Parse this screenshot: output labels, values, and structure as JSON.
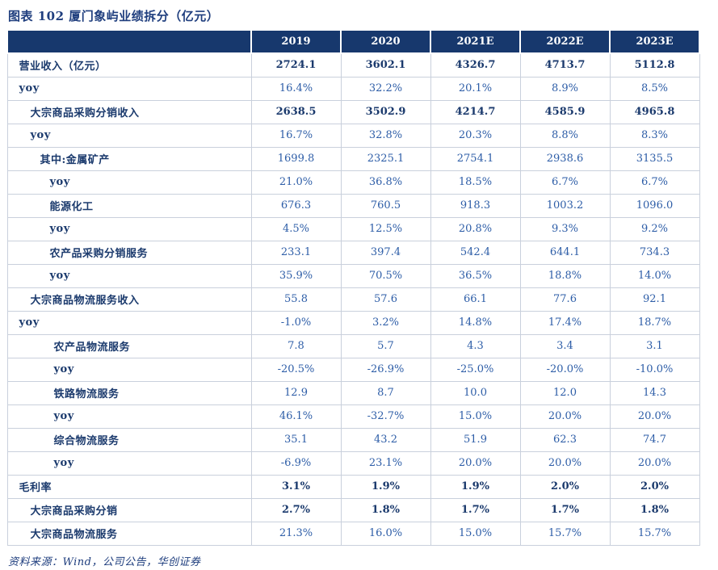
{
  "title": "图表 102  厦门象屿业绩拆分（亿元）",
  "source": "资料来源：Wind，公司公告，华创证券",
  "colors": {
    "header_bg": "#17386d",
    "header_text": "#ffffff",
    "bold_text": "#1b3a6d",
    "value_text": "#2d5da7",
    "title_text": "#1f3e7e",
    "grid_border": "#c9d0dc"
  },
  "chart_data": {
    "type": "table",
    "title": "图表 102  厦门象屿业绩拆分（亿元）",
    "columns": [
      "",
      "2019",
      "2020",
      "2021E",
      "2022E",
      "2023E"
    ],
    "rows": [
      {
        "label": "营业收入（亿元）",
        "indent": 0,
        "bold_values": true,
        "values": [
          "2724.1",
          "3602.1",
          "4326.7",
          "4713.7",
          "5112.8"
        ]
      },
      {
        "label": "yoy",
        "indent": 0,
        "bold_values": false,
        "values": [
          "16.4%",
          "32.2%",
          "20.1%",
          "8.9%",
          "8.5%"
        ]
      },
      {
        "label": "大宗商品采购分销收入",
        "indent": 1,
        "bold_values": true,
        "values": [
          "2638.5",
          "3502.9",
          "4214.7",
          "4585.9",
          "4965.8"
        ]
      },
      {
        "label": "yoy",
        "indent": 1,
        "bold_values": false,
        "values": [
          "16.7%",
          "32.8%",
          "20.3%",
          "8.8%",
          "8.3%"
        ]
      },
      {
        "label": "其中:金属矿产",
        "indent": 2,
        "bold_values": false,
        "values": [
          "1699.8",
          "2325.1",
          "2754.1",
          "2938.6",
          "3135.5"
        ]
      },
      {
        "label": "yoy",
        "indent": 3,
        "bold_values": false,
        "values": [
          "21.0%",
          "36.8%",
          "18.5%",
          "6.7%",
          "6.7%"
        ]
      },
      {
        "label": "能源化工",
        "indent": 3,
        "bold_values": false,
        "values": [
          "676.3",
          "760.5",
          "918.3",
          "1003.2",
          "1096.0"
        ]
      },
      {
        "label": "yoy",
        "indent": 3,
        "bold_values": false,
        "values": [
          "4.5%",
          "12.5%",
          "20.8%",
          "9.3%",
          "9.2%"
        ]
      },
      {
        "label": "农产品采购分销服务",
        "indent": 3,
        "bold_values": false,
        "values": [
          "233.1",
          "397.4",
          "542.4",
          "644.1",
          "734.3"
        ]
      },
      {
        "label": "yoy",
        "indent": 3,
        "bold_values": false,
        "values": [
          "35.9%",
          "70.5%",
          "36.5%",
          "18.8%",
          "14.0%"
        ]
      },
      {
        "label": "大宗商品物流服务收入",
        "indent": 1,
        "bold_values": false,
        "values": [
          "55.8",
          "57.6",
          "66.1",
          "77.6",
          "92.1"
        ]
      },
      {
        "label": "yoy",
        "indent": 0,
        "bold_values": false,
        "values": [
          "-1.0%",
          "3.2%",
          "14.8%",
          "17.4%",
          "18.7%"
        ]
      },
      {
        "label": "农产品物流服务",
        "indent": 4,
        "bold_values": false,
        "values": [
          "7.8",
          "5.7",
          "4.3",
          "3.4",
          "3.1"
        ]
      },
      {
        "label": "yoy",
        "indent": 4,
        "bold_values": false,
        "values": [
          "-20.5%",
          "-26.9%",
          "-25.0%",
          "-20.0%",
          "-10.0%"
        ]
      },
      {
        "label": "铁路物流服务",
        "indent": 4,
        "bold_values": false,
        "values": [
          "12.9",
          "8.7",
          "10.0",
          "12.0",
          "14.3"
        ]
      },
      {
        "label": "yoy",
        "indent": 4,
        "bold_values": false,
        "values": [
          "46.1%",
          "-32.7%",
          "15.0%",
          "20.0%",
          "20.0%"
        ]
      },
      {
        "label": "综合物流服务",
        "indent": 4,
        "bold_values": false,
        "values": [
          "35.1",
          "43.2",
          "51.9",
          "62.3",
          "74.7"
        ]
      },
      {
        "label": "yoy",
        "indent": 4,
        "bold_values": false,
        "values": [
          "-6.9%",
          "23.1%",
          "20.0%",
          "20.0%",
          "20.0%"
        ]
      },
      {
        "label": "毛利率",
        "indent": 0,
        "bold_values": true,
        "values": [
          "3.1%",
          "1.9%",
          "1.9%",
          "2.0%",
          "2.0%"
        ]
      },
      {
        "label": "大宗商品采购分销",
        "indent": 1,
        "bold_values": true,
        "values": [
          "2.7%",
          "1.8%",
          "1.7%",
          "1.7%",
          "1.8%"
        ]
      },
      {
        "label": "大宗商品物流服务",
        "indent": 1,
        "bold_values": false,
        "values": [
          "21.3%",
          "16.0%",
          "15.0%",
          "15.7%",
          "15.7%"
        ]
      }
    ],
    "source": "资料来源：Wind，公司公告，华创证券"
  }
}
